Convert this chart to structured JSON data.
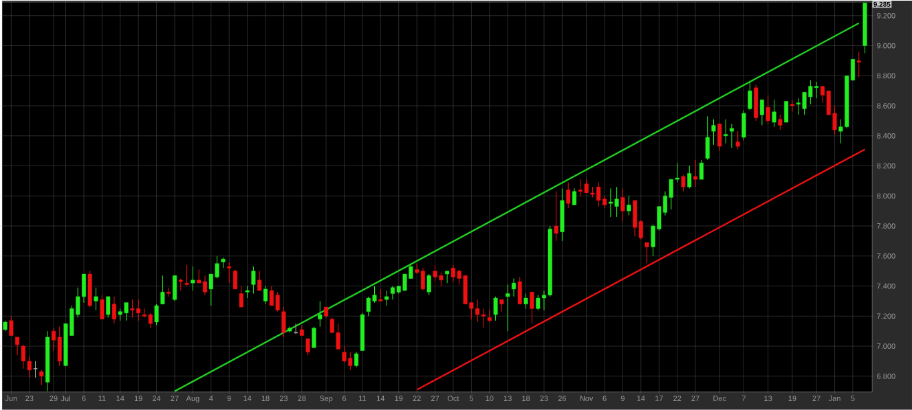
{
  "chart_data": {
    "type": "candlestick",
    "categories": [
      null,
      "Jun",
      null,
      null,
      "23",
      null,
      null,
      null,
      "29",
      null,
      "Jul",
      null,
      null,
      "6",
      null,
      null,
      "11",
      null,
      null,
      "14",
      null,
      null,
      "19",
      null,
      null,
      "24",
      null,
      null,
      "27",
      null,
      null,
      "Aug",
      null,
      null,
      "4",
      null,
      null,
      "9",
      null,
      null,
      "14",
      null,
      null,
      "18",
      null,
      null,
      "23",
      null,
      null,
      "28",
      null,
      null,
      null,
      "Sep",
      null,
      null,
      "6",
      null,
      null,
      "11",
      null,
      null,
      "14",
      null,
      null,
      "19",
      null,
      null,
      "22",
      null,
      null,
      "27",
      null,
      null,
      "Oct",
      null,
      null,
      "5",
      null,
      null,
      "10",
      null,
      null,
      "13",
      null,
      null,
      "18",
      null,
      null,
      "23",
      null,
      null,
      "26",
      null,
      null,
      null,
      "Nov",
      null,
      null,
      "6",
      null,
      null,
      "9",
      null,
      null,
      "14",
      null,
      null,
      "17",
      null,
      null,
      "22",
      null,
      null,
      "27",
      null,
      null,
      null,
      "Dec",
      null,
      null,
      null,
      "7",
      null,
      null,
      null,
      "13",
      null,
      null,
      null,
      "19",
      null,
      null,
      null,
      "27",
      null,
      null,
      "Jan",
      null,
      null,
      "5",
      null,
      null
    ],
    "ohlc": [
      [
        7.11,
        7.17,
        7.1,
        7.16
      ],
      [
        7.17,
        7.2,
        7.07,
        7.07
      ],
      [
        7.06,
        7.06,
        6.94,
        7.01
      ],
      [
        7.0,
        7.01,
        6.85,
        6.9
      ],
      [
        6.9,
        6.93,
        6.79,
        6.84
      ],
      [
        6.85,
        6.9,
        6.79,
        6.85
      ],
      [
        6.83,
        6.84,
        6.74,
        6.8
      ],
      [
        6.76,
        7.1,
        6.7,
        7.06
      ],
      [
        7.1,
        7.12,
        6.97,
        7.04
      ],
      [
        7.06,
        7.13,
        6.87,
        6.9
      ],
      [
        6.87,
        7.15,
        6.87,
        7.15
      ],
      [
        7.07,
        7.27,
        7.07,
        7.25
      ],
      [
        7.21,
        7.39,
        7.19,
        7.33
      ],
      [
        7.33,
        7.48,
        7.29,
        7.48
      ],
      [
        7.48,
        7.5,
        7.26,
        7.27
      ],
      [
        7.3,
        7.39,
        7.24,
        7.33
      ],
      [
        7.31,
        7.34,
        7.18,
        7.18
      ],
      [
        7.21,
        7.33,
        7.19,
        7.33
      ],
      [
        7.28,
        7.33,
        7.15,
        7.18
      ],
      [
        7.21,
        7.25,
        7.17,
        7.23
      ],
      [
        7.22,
        7.29,
        7.17,
        7.29
      ],
      [
        7.25,
        7.31,
        7.19,
        7.24
      ],
      [
        7.25,
        7.31,
        7.17,
        7.22
      ],
      [
        7.21,
        7.25,
        7.19,
        7.2
      ],
      [
        7.21,
        7.22,
        7.12,
        7.15
      ],
      [
        7.16,
        7.28,
        7.14,
        7.27
      ],
      [
        7.28,
        7.47,
        7.28,
        7.36
      ],
      [
        7.36,
        7.39,
        7.33,
        7.35
      ],
      [
        7.31,
        7.47,
        7.3,
        7.47
      ],
      [
        7.44,
        7.45,
        7.37,
        7.43
      ],
      [
        7.42,
        7.54,
        7.4,
        7.41
      ],
      [
        7.42,
        7.53,
        7.37,
        7.44
      ],
      [
        7.44,
        7.51,
        7.42,
        7.42
      ],
      [
        7.43,
        7.47,
        7.34,
        7.36
      ],
      [
        7.38,
        7.48,
        7.27,
        7.48
      ],
      [
        7.46,
        7.6,
        7.45,
        7.55
      ],
      [
        7.56,
        7.59,
        7.52,
        7.58
      ],
      [
        7.53,
        7.56,
        7.42,
        7.52
      ],
      [
        7.5,
        7.51,
        7.38,
        7.38
      ],
      [
        7.35,
        7.4,
        7.26,
        7.26
      ],
      [
        7.36,
        7.4,
        7.32,
        7.37
      ],
      [
        7.41,
        7.53,
        7.35,
        7.5
      ],
      [
        7.44,
        7.5,
        7.37,
        7.37
      ],
      [
        7.3,
        7.4,
        7.28,
        7.38
      ],
      [
        7.37,
        7.4,
        7.27,
        7.27
      ],
      [
        7.34,
        7.36,
        7.23,
        7.24
      ],
      [
        7.23,
        7.26,
        7.06,
        7.09
      ],
      [
        7.1,
        7.13,
        7.09,
        7.12
      ],
      [
        7.09,
        7.15,
        7.08,
        7.09
      ],
      [
        7.11,
        7.14,
        7.07,
        7.07
      ],
      [
        7.05,
        7.05,
        6.94,
        6.96
      ],
      [
        6.99,
        7.13,
        6.99,
        7.12
      ],
      [
        7.18,
        7.3,
        7.13,
        7.21
      ],
      [
        7.26,
        7.26,
        7.19,
        7.2
      ],
      [
        7.18,
        7.19,
        7.09,
        7.09
      ],
      [
        7.09,
        7.15,
        6.98,
        6.98
      ],
      [
        6.96,
        7.0,
        6.89,
        6.9
      ],
      [
        6.92,
        6.96,
        6.84,
        6.87
      ],
      [
        6.87,
        6.96,
        6.86,
        6.95
      ],
      [
        6.97,
        7.22,
        6.97,
        7.21
      ],
      [
        7.23,
        7.33,
        7.2,
        7.32
      ],
      [
        7.3,
        7.4,
        7.29,
        7.34
      ],
      [
        7.31,
        7.38,
        7.3,
        7.3
      ],
      [
        7.31,
        7.37,
        7.27,
        7.33
      ],
      [
        7.35,
        7.4,
        7.31,
        7.39
      ],
      [
        7.36,
        7.4,
        7.35,
        7.4
      ],
      [
        7.37,
        7.48,
        7.37,
        7.48
      ],
      [
        7.45,
        7.55,
        7.45,
        7.53
      ],
      [
        7.51,
        7.55,
        7.48,
        7.49
      ],
      [
        7.5,
        7.52,
        7.37,
        7.38
      ],
      [
        7.36,
        7.48,
        7.34,
        7.47
      ],
      [
        7.5,
        7.54,
        7.43,
        7.46
      ],
      [
        7.47,
        7.49,
        7.4,
        7.44
      ],
      [
        7.48,
        7.5,
        7.42,
        7.5
      ],
      [
        7.52,
        7.54,
        7.43,
        7.46
      ],
      [
        7.5,
        7.51,
        7.41,
        7.45
      ],
      [
        7.47,
        7.47,
        7.28,
        7.28
      ],
      [
        7.29,
        7.29,
        7.18,
        7.25
      ],
      [
        7.25,
        7.31,
        7.16,
        7.21
      ],
      [
        7.21,
        7.25,
        7.12,
        7.2
      ],
      [
        7.19,
        7.24,
        7.16,
        7.17
      ],
      [
        7.21,
        7.33,
        7.17,
        7.32
      ],
      [
        7.31,
        7.31,
        7.23,
        7.28
      ],
      [
        7.33,
        7.41,
        7.1,
        7.35
      ],
      [
        7.38,
        7.45,
        7.33,
        7.42
      ],
      [
        7.43,
        7.46,
        7.28,
        7.28
      ],
      [
        7.28,
        7.35,
        7.25,
        7.32
      ],
      [
        7.36,
        7.36,
        7.15,
        7.25
      ],
      [
        7.25,
        7.34,
        7.24,
        7.32
      ],
      [
        7.32,
        7.37,
        7.24,
        7.34
      ],
      [
        7.34,
        7.8,
        7.33,
        7.78
      ],
      [
        7.8,
        8.03,
        7.7,
        7.75
      ],
      [
        7.76,
        8.05,
        7.7,
        7.97
      ],
      [
        8.04,
        8.09,
        7.92,
        7.95
      ],
      [
        7.94,
        8.05,
        7.94,
        8.03
      ],
      [
        8.04,
        8.11,
        8.0,
        8.03
      ],
      [
        8.08,
        8.11,
        8.02,
        8.02
      ],
      [
        8.02,
        8.06,
        7.99,
        8.01
      ],
      [
        8.06,
        8.09,
        7.93,
        7.97
      ],
      [
        7.98,
        8.0,
        7.92,
        7.94
      ],
      [
        7.95,
        8.05,
        7.86,
        7.96
      ],
      [
        7.93,
        8.06,
        7.86,
        7.98
      ],
      [
        7.99,
        8.05,
        7.83,
        7.9
      ],
      [
        7.9,
        8.0,
        7.87,
        7.94
      ],
      [
        7.97,
        7.97,
        7.73,
        7.79
      ],
      [
        7.83,
        7.84,
        7.71,
        7.72
      ],
      [
        7.69,
        7.69,
        7.55,
        7.66
      ],
      [
        7.66,
        7.81,
        7.6,
        7.8
      ],
      [
        7.78,
        7.93,
        7.77,
        7.93
      ],
      [
        7.89,
        8.03,
        7.87,
        8.0
      ],
      [
        7.99,
        8.11,
        7.91,
        8.11
      ],
      [
        8.11,
        8.22,
        8.09,
        8.12
      ],
      [
        8.13,
        8.14,
        8.03,
        8.06
      ],
      [
        8.06,
        8.2,
        8.05,
        8.15
      ],
      [
        8.13,
        8.24,
        8.06,
        8.11
      ],
      [
        8.11,
        8.24,
        8.11,
        8.22
      ],
      [
        8.25,
        8.53,
        8.24,
        8.39
      ],
      [
        8.43,
        8.51,
        8.34,
        8.47
      ],
      [
        8.48,
        8.48,
        8.3,
        8.33
      ],
      [
        8.4,
        8.51,
        8.35,
        8.41
      ],
      [
        8.43,
        8.48,
        8.32,
        8.45
      ],
      [
        8.36,
        8.43,
        8.31,
        8.33
      ],
      [
        8.39,
        8.57,
        8.37,
        8.55
      ],
      [
        8.58,
        8.76,
        8.57,
        8.7
      ],
      [
        8.72,
        8.74,
        8.5,
        8.52
      ],
      [
        8.54,
        8.64,
        8.47,
        8.64
      ],
      [
        8.59,
        8.67,
        8.48,
        8.5
      ],
      [
        8.49,
        8.64,
        8.46,
        8.56
      ],
      [
        8.51,
        8.54,
        8.44,
        8.47
      ],
      [
        8.49,
        8.63,
        8.49,
        8.63
      ],
      [
        8.61,
        8.64,
        8.56,
        8.6
      ],
      [
        8.61,
        8.65,
        8.54,
        8.62
      ],
      [
        8.58,
        8.69,
        8.54,
        8.69
      ],
      [
        8.66,
        8.77,
        8.61,
        8.73
      ],
      [
        8.72,
        8.76,
        8.65,
        8.73
      ],
      [
        8.73,
        8.73,
        8.62,
        8.67
      ],
      [
        8.7,
        8.7,
        8.54,
        8.54
      ],
      [
        8.55,
        8.6,
        8.41,
        8.44
      ],
      [
        8.43,
        8.51,
        8.35,
        8.46
      ],
      [
        8.46,
        8.8,
        8.45,
        8.8
      ],
      [
        8.77,
        8.91,
        8.77,
        8.91
      ],
      [
        8.9,
        8.96,
        8.79,
        8.89
      ],
      [
        9.0,
        9.285,
        8.95,
        9.285
      ]
    ],
    "colors": [
      "#22ee22",
      "#ee1111",
      "#ee1111",
      "#ee1111",
      "#ee1111",
      "#a0a0a0",
      "#ee1111",
      "#22ee22",
      "#ee1111",
      "#ee1111",
      "#22ee22",
      "#22ee22",
      "#22ee22",
      "#22ee22",
      "#ee1111",
      "#22ee22",
      "#ee1111",
      "#22ee22",
      "#ee1111",
      "#22ee22",
      "#22ee22",
      "#ee1111",
      "#ee1111",
      "#ee1111",
      "#ee1111",
      "#22ee22",
      "#22ee22",
      "#ee1111",
      "#22ee22",
      "#ee1111",
      "#ee1111",
      "#22ee22",
      "#ee1111",
      "#ee1111",
      "#22ee22",
      "#22ee22",
      "#22ee22",
      "#ee1111",
      "#ee1111",
      "#ee1111",
      "#22ee22",
      "#22ee22",
      "#ee1111",
      "#22ee22",
      "#ee1111",
      "#ee1111",
      "#ee1111",
      "#22ee22",
      "#a0a0a0",
      "#ee1111",
      "#ee1111",
      "#22ee22",
      "#22ee22",
      "#ee1111",
      "#ee1111",
      "#ee1111",
      "#ee1111",
      "#ee1111",
      "#22ee22",
      "#22ee22",
      "#22ee22",
      "#22ee22",
      "#ee1111",
      "#22ee22",
      "#22ee22",
      "#22ee22",
      "#22ee22",
      "#22ee22",
      "#ee1111",
      "#ee1111",
      "#22ee22",
      "#ee1111",
      "#ee1111",
      "#22ee22",
      "#ee1111",
      "#ee1111",
      "#ee1111",
      "#ee1111",
      "#ee1111",
      "#ee1111",
      "#ee1111",
      "#22ee22",
      "#ee1111",
      "#22ee22",
      "#22ee22",
      "#ee1111",
      "#22ee22",
      "#ee1111",
      "#22ee22",
      "#22ee22",
      "#22ee22",
      "#ee1111",
      "#22ee22",
      "#ee1111",
      "#22ee22",
      "#ee1111",
      "#ee1111",
      "#ee1111",
      "#ee1111",
      "#ee1111",
      "#22ee22",
      "#22ee22",
      "#ee1111",
      "#22ee22",
      "#ee1111",
      "#ee1111",
      "#ee1111",
      "#22ee22",
      "#22ee22",
      "#22ee22",
      "#22ee22",
      "#22ee22",
      "#ee1111",
      "#22ee22",
      "#ee1111",
      "#22ee22",
      "#22ee22",
      "#22ee22",
      "#ee1111",
      "#22ee22",
      "#22ee22",
      "#ee1111",
      "#22ee22",
      "#22ee22",
      "#ee1111",
      "#22ee22",
      "#ee1111",
      "#22ee22",
      "#ee1111",
      "#22ee22",
      "#ee1111",
      "#22ee22",
      "#22ee22",
      "#22ee22",
      "#22ee22",
      "#ee1111",
      "#ee1111",
      "#ee1111",
      "#22ee22",
      "#22ee22",
      "#22ee22",
      "#ee1111",
      "#22ee22"
    ],
    "series": [
      {
        "type": "line",
        "color": "#22cc22",
        "values": [
          null,
          null,
          null,
          null,
          null,
          null,
          null,
          null,
          null,
          null,
          null,
          null,
          null,
          null,
          null,
          null,
          null,
          null,
          null,
          null,
          null,
          null,
          null,
          null,
          null,
          null,
          null,
          null,
          6.7,
          null,
          null,
          null,
          null,
          null,
          null,
          null,
          null,
          null,
          null,
          null,
          null,
          null,
          null,
          null,
          null,
          null,
          null,
          null,
          null,
          null,
          null,
          null,
          null,
          null,
          null,
          null,
          null,
          null,
          null,
          null,
          null,
          null,
          null,
          null,
          null,
          null,
          null,
          null,
          null,
          null,
          null,
          null,
          null,
          null,
          null,
          null,
          null,
          null,
          null,
          null,
          null,
          null,
          null,
          null,
          null,
          null,
          null,
          null,
          null,
          null,
          null,
          null,
          null,
          null,
          null,
          null,
          null,
          null,
          null,
          null,
          null,
          null,
          null,
          null,
          null,
          null,
          null,
          null,
          null,
          null,
          null,
          null,
          null,
          null,
          null,
          null,
          null,
          null,
          null,
          null,
          null,
          null,
          null,
          null,
          null,
          null,
          null,
          null,
          null,
          null,
          null,
          null,
          null,
          null,
          null,
          null,
          null,
          null,
          null,
          null,
          null,
          9.15,
          null
        ]
      },
      {
        "type": "line",
        "color": "#ee1111",
        "values": [
          null,
          null,
          null,
          null,
          null,
          null,
          null,
          null,
          null,
          null,
          null,
          null,
          null,
          null,
          null,
          null,
          null,
          null,
          null,
          null,
          null,
          null,
          null,
          null,
          null,
          null,
          null,
          null,
          null,
          null,
          null,
          null,
          null,
          null,
          null,
          null,
          null,
          null,
          null,
          null,
          null,
          null,
          null,
          null,
          null,
          null,
          null,
          null,
          null,
          null,
          null,
          null,
          null,
          null,
          null,
          null,
          null,
          null,
          null,
          null,
          null,
          null,
          null,
          null,
          null,
          null,
          null,
          null,
          6.71,
          null,
          null,
          null,
          null,
          null,
          null,
          null,
          null,
          null,
          null,
          null,
          null,
          null,
          null,
          null,
          null,
          null,
          null,
          null,
          null,
          null,
          null,
          null,
          null,
          null,
          null,
          null,
          null,
          null,
          null,
          null,
          null,
          null,
          null,
          null,
          null,
          null,
          null,
          null,
          null,
          null,
          null,
          null,
          null,
          null,
          null,
          null,
          null,
          null,
          null,
          null,
          null,
          null,
          null,
          null,
          null,
          null,
          null,
          null,
          null,
          null,
          null,
          null,
          null,
          null,
          null,
          null,
          null,
          null,
          null,
          null,
          null,
          null,
          8.31
        ]
      }
    ],
    "ylim": [
      6.695,
      9.29
    ],
    "yticks": [
      {
        "value": 6.8,
        "label": "6.800"
      },
      {
        "value": 7.0,
        "label": "7.000"
      },
      {
        "value": 7.2,
        "label": "7.200"
      },
      {
        "value": 7.4,
        "label": "7.400"
      },
      {
        "value": 7.6,
        "label": "7.600"
      },
      {
        "value": 7.8,
        "label": "7.800"
      },
      {
        "value": 8.0,
        "label": "8.000"
      },
      {
        "value": 8.2,
        "label": "8.200"
      },
      {
        "value": 8.4,
        "label": "8.400"
      },
      {
        "value": 8.6,
        "label": "8.600"
      },
      {
        "value": 8.8,
        "label": "8.800"
      },
      {
        "value": 9.0,
        "label": "9.000"
      },
      {
        "value": 9.2,
        "label": "9.200"
      }
    ],
    "grid": true,
    "annotations": [
      "9.285"
    ]
  }
}
